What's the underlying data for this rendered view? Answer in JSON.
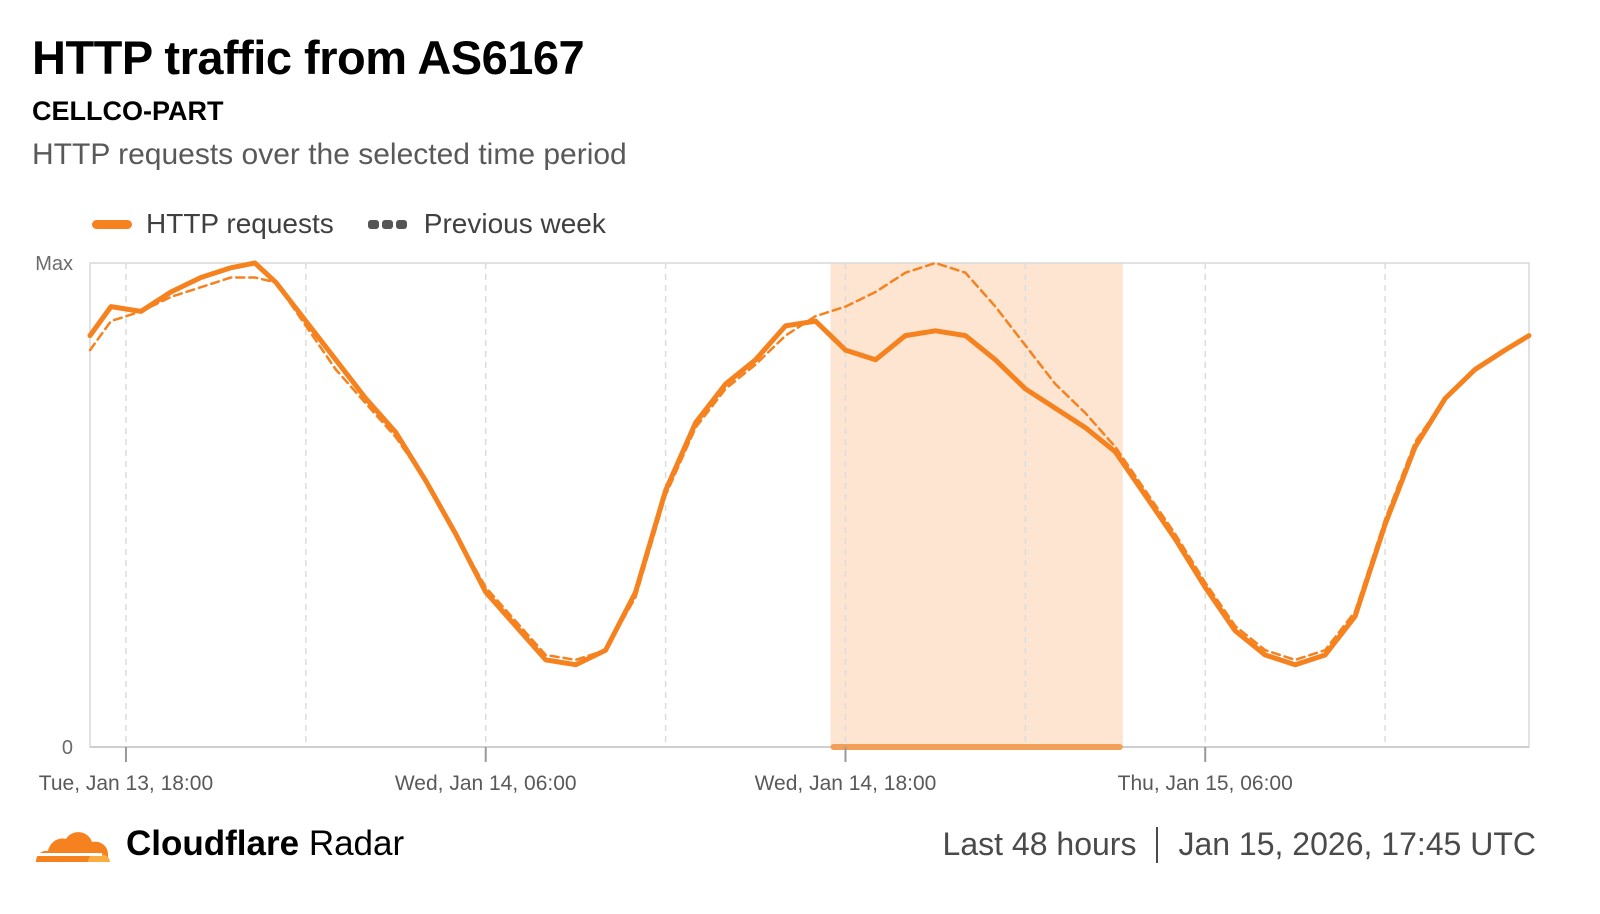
{
  "header": {
    "title": "HTTP traffic from AS6167",
    "subtitle": "CELLCO-PART",
    "description": "HTTP requests over the selected time period"
  },
  "footer": {
    "brand_bold": "Cloudflare",
    "brand_light": "Radar",
    "range": "Last 48 hours",
    "timestamp": "Jan 15, 2026, 17:45 UTC"
  },
  "colors": {
    "accent": "#f6821f",
    "highlight": "#fde5d2",
    "grid": "#dcdcdc"
  },
  "chart_data": {
    "type": "line",
    "y_tick_labels": [
      "Max",
      "0"
    ],
    "ylim": [
      0,
      1
    ],
    "x_ticks": [
      {
        "t": 2,
        "label": "Tue, Jan 13, 18:00"
      },
      {
        "t": 14,
        "label": "Wed, Jan 14, 06:00"
      },
      {
        "t": 26,
        "label": "Wed, Jan 14, 18:00"
      },
      {
        "t": 38,
        "label": "Thu, Jan 15, 06:00"
      }
    ],
    "grid_t": [
      2,
      8,
      14,
      20,
      26,
      32,
      38,
      44
    ],
    "xlim": [
      0.8,
      48.8
    ],
    "highlight_range": [
      25.5,
      35.25
    ],
    "legend": [
      "HTTP requests",
      "Previous week"
    ],
    "series": [
      {
        "name": "HTTP requests",
        "style": "solid",
        "points": [
          [
            0.8,
            0.85
          ],
          [
            1.5,
            0.91
          ],
          [
            2.5,
            0.9
          ],
          [
            3.5,
            0.94
          ],
          [
            4.5,
            0.97
          ],
          [
            5.5,
            0.99
          ],
          [
            6.3,
            1.0
          ],
          [
            7,
            0.96
          ],
          [
            8,
            0.88
          ],
          [
            9,
            0.8
          ],
          [
            10,
            0.72
          ],
          [
            11,
            0.65
          ],
          [
            12,
            0.55
          ],
          [
            13,
            0.44
          ],
          [
            14,
            0.32
          ],
          [
            15,
            0.25
          ],
          [
            16,
            0.18
          ],
          [
            17,
            0.17
          ],
          [
            18,
            0.2
          ],
          [
            19,
            0.32
          ],
          [
            20,
            0.53
          ],
          [
            21,
            0.67
          ],
          [
            22,
            0.75
          ],
          [
            23,
            0.8
          ],
          [
            24,
            0.87
          ],
          [
            25,
            0.88
          ],
          [
            26,
            0.82
          ],
          [
            27,
            0.8
          ],
          [
            28,
            0.85
          ],
          [
            29,
            0.86
          ],
          [
            30,
            0.85
          ],
          [
            31,
            0.8
          ],
          [
            32,
            0.74
          ],
          [
            33,
            0.7
          ],
          [
            34,
            0.66
          ],
          [
            35,
            0.61
          ],
          [
            36,
            0.52
          ],
          [
            37,
            0.43
          ],
          [
            38,
            0.33
          ],
          [
            39,
            0.24
          ],
          [
            40,
            0.19
          ],
          [
            41,
            0.17
          ],
          [
            42,
            0.19
          ],
          [
            43,
            0.27
          ],
          [
            44,
            0.46
          ],
          [
            45,
            0.62
          ],
          [
            46,
            0.72
          ],
          [
            47,
            0.78
          ],
          [
            48,
            0.82
          ],
          [
            48.8,
            0.85
          ]
        ]
      },
      {
        "name": "Previous week",
        "style": "dashed",
        "points": [
          [
            0.8,
            0.82
          ],
          [
            1.5,
            0.88
          ],
          [
            2.5,
            0.9
          ],
          [
            3.5,
            0.93
          ],
          [
            4.5,
            0.95
          ],
          [
            5.5,
            0.97
          ],
          [
            6.3,
            0.97
          ],
          [
            7,
            0.96
          ],
          [
            8,
            0.87
          ],
          [
            9,
            0.78
          ],
          [
            10,
            0.71
          ],
          [
            11,
            0.64
          ],
          [
            12,
            0.55
          ],
          [
            13,
            0.44
          ],
          [
            14,
            0.33
          ],
          [
            15,
            0.26
          ],
          [
            16,
            0.19
          ],
          [
            17,
            0.18
          ],
          [
            18,
            0.2
          ],
          [
            19,
            0.31
          ],
          [
            20,
            0.52
          ],
          [
            21,
            0.66
          ],
          [
            22,
            0.74
          ],
          [
            23,
            0.79
          ],
          [
            24,
            0.85
          ],
          [
            25,
            0.89
          ],
          [
            26,
            0.91
          ],
          [
            27,
            0.94
          ],
          [
            28,
            0.98
          ],
          [
            29,
            1.0
          ],
          [
            30,
            0.98
          ],
          [
            31,
            0.91
          ],
          [
            32,
            0.83
          ],
          [
            33,
            0.75
          ],
          [
            34,
            0.69
          ],
          [
            35,
            0.62
          ],
          [
            36,
            0.53
          ],
          [
            37,
            0.44
          ],
          [
            38,
            0.34
          ],
          [
            39,
            0.25
          ],
          [
            40,
            0.2
          ],
          [
            41,
            0.18
          ],
          [
            42,
            0.2
          ],
          [
            43,
            0.28
          ],
          [
            44,
            0.47
          ],
          [
            45,
            0.63
          ],
          [
            46,
            0.72
          ],
          [
            47,
            0.78
          ],
          [
            48,
            0.82
          ],
          [
            48.8,
            0.85
          ]
        ]
      }
    ]
  }
}
